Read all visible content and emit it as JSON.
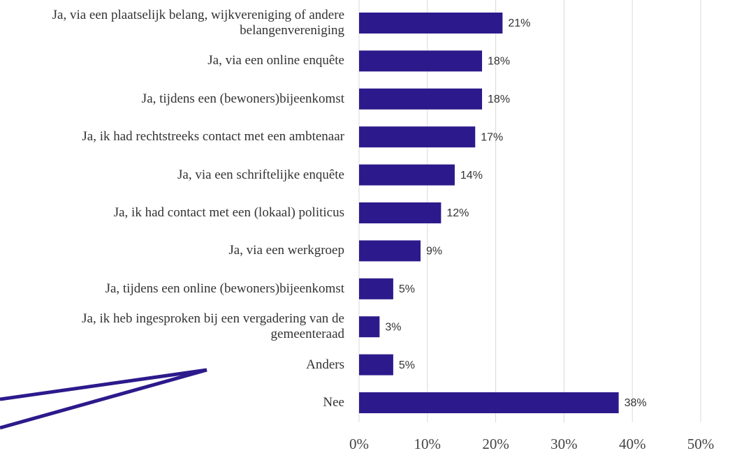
{
  "chart_data": {
    "type": "bar",
    "orientation": "horizontal",
    "categories": [
      "Ja, via een plaatselijk belang, wijkvereniging of andere belangenvereniging",
      "Ja, via een online enquête",
      "Ja, tijdens een (bewoners)bijeenkomst",
      "Ja, ik had rechtstreeks contact met een ambtenaar",
      "Ja, via een schriftelijke enquête",
      "Ja, ik had contact met een (lokaal) politicus",
      "Ja, via een werkgroep",
      "Ja, tijdens een online (bewoners)bijeenkomst",
      "Ja, ik heb ingesproken bij een vergadering van de gemeenteraad",
      "Anders",
      "Nee"
    ],
    "values": [
      21,
      18,
      18,
      17,
      14,
      12,
      9,
      5,
      3,
      5,
      38
    ],
    "value_labels": [
      "21%",
      "18%",
      "18%",
      "17%",
      "14%",
      "12%",
      "9%",
      "5%",
      "3%",
      "5%",
      "38%"
    ],
    "color": "#2c1a8c",
    "xlim": [
      0,
      50
    ],
    "xticks": [
      {
        "value": 0,
        "label": "0%"
      },
      {
        "value": 10,
        "label": "10%"
      },
      {
        "value": 20,
        "label": "20%"
      },
      {
        "value": 30,
        "label": "30%"
      },
      {
        "value": 40,
        "label": "40%"
      },
      {
        "value": 50,
        "label": "50%"
      }
    ],
    "grid": true
  }
}
